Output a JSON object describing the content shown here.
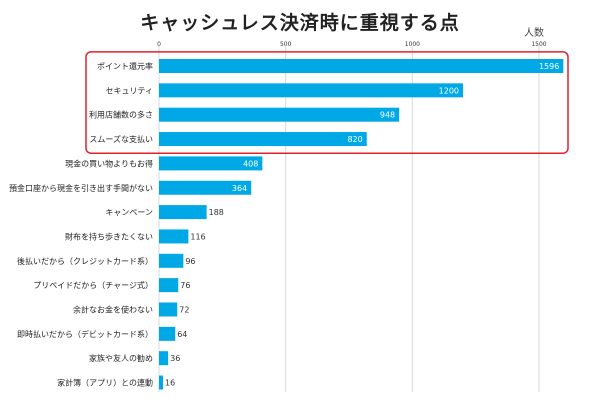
{
  "chart_data": {
    "type": "bar",
    "orientation": "horizontal",
    "title": "キャッシュレス決済時に重視する点",
    "unit_label": "人数",
    "xlim": [
      0,
      1650
    ],
    "xticks": [
      0,
      500,
      1000,
      1500
    ],
    "grid": true,
    "categories": [
      "ポイント還元率",
      "セキュリティ",
      "利用店舗数の多さ",
      "スムーズな支払い",
      "現金の買い物よりもお得",
      "預金口座から現金を引き出す手間がない",
      "キャンペーン",
      "財布を持ち歩きたくない",
      "後払いだから（クレジットカード系）",
      "プリペイドだから（チャージ式）",
      "余計なお金を使わない",
      "即時払いだから（デビットカード系）",
      "家族や友人の勧め",
      "家計簿（アプリ）との連動"
    ],
    "values": [
      1596,
      1200,
      948,
      820,
      408,
      364,
      188,
      116,
      96,
      76,
      72,
      64,
      36,
      16
    ],
    "bar_color": "#00a9e6",
    "highlight": {
      "categories_count": 4,
      "color": "#e0202a"
    }
  }
}
